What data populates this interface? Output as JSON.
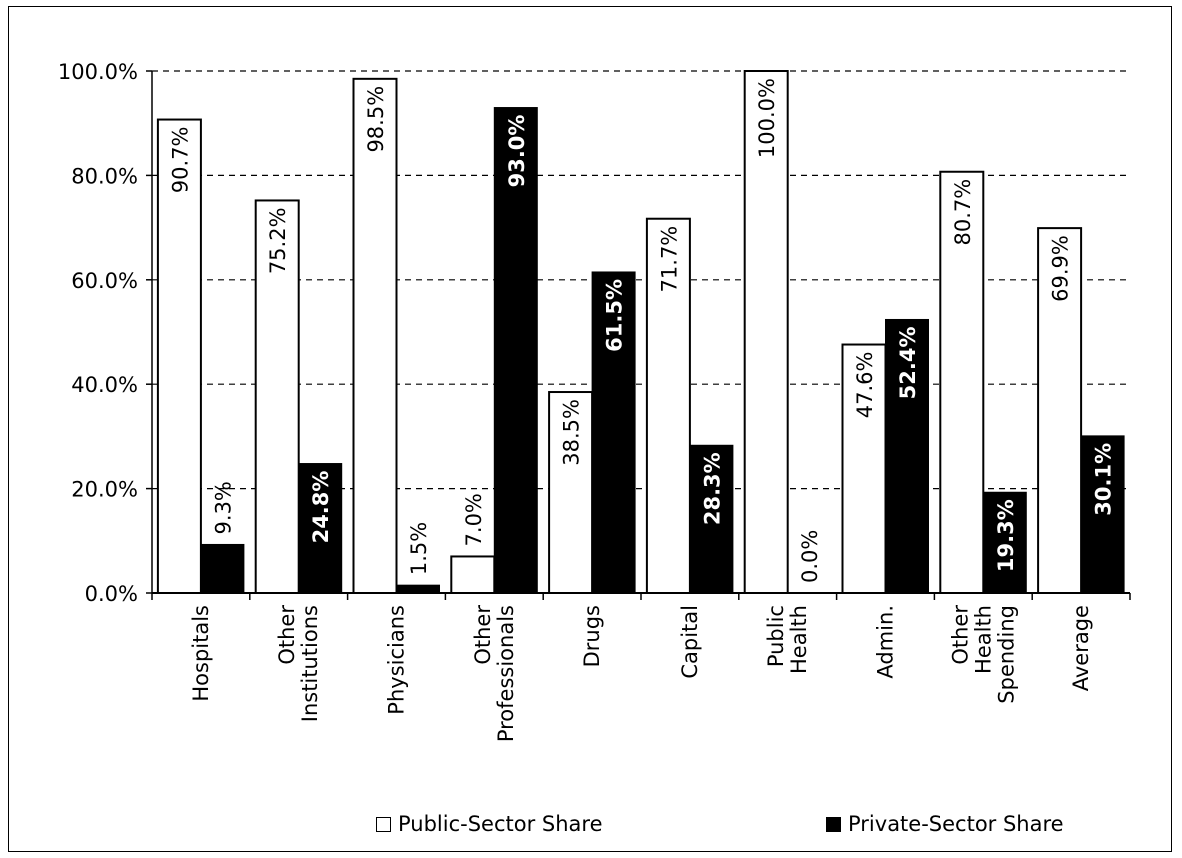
{
  "chart_data": {
    "type": "bar",
    "categories": [
      [
        "Hospitals"
      ],
      [
        "Other",
        "Institutions"
      ],
      [
        "Physicians"
      ],
      [
        "Other",
        "Professionals"
      ],
      [
        "Drugs"
      ],
      [
        "Capital"
      ],
      [
        "Public",
        "Health"
      ],
      [
        "Admin."
      ],
      [
        "Other",
        "Health",
        "Spending"
      ],
      [
        "Average"
      ]
    ],
    "series": [
      {
        "name": "Public-Sector Share",
        "color": "#ffffff",
        "values": [
          90.7,
          75.2,
          98.5,
          7.0,
          38.5,
          71.7,
          100.0,
          47.6,
          80.7,
          69.9
        ],
        "labels": [
          "90.7%",
          "75.2%",
          "98.5%",
          "7.0%",
          "38.5%",
          "71.7%",
          "100.0%",
          "47.6%",
          "80.7%",
          "69.9%"
        ]
      },
      {
        "name": "Private-Sector Share",
        "color": "#000000",
        "values": [
          9.3,
          24.8,
          1.5,
          93.0,
          61.5,
          28.3,
          0.0,
          52.4,
          19.3,
          30.1
        ],
        "labels": [
          "9.3%",
          "24.8%",
          "1.5%",
          "93.0%",
          "61.5%",
          "28.3%",
          "0.0%",
          "52.4%",
          "19.3%",
          "30.1%"
        ]
      }
    ],
    "yticks": [
      0,
      20,
      40,
      60,
      80,
      100
    ],
    "ytick_labels": [
      "0.0%",
      "20.0%",
      "40.0%",
      "60.0%",
      "80.0%",
      "100.0%"
    ],
    "ylim": [
      0,
      100
    ],
    "grid": "horizontal dashed",
    "legend_position": "bottom"
  }
}
